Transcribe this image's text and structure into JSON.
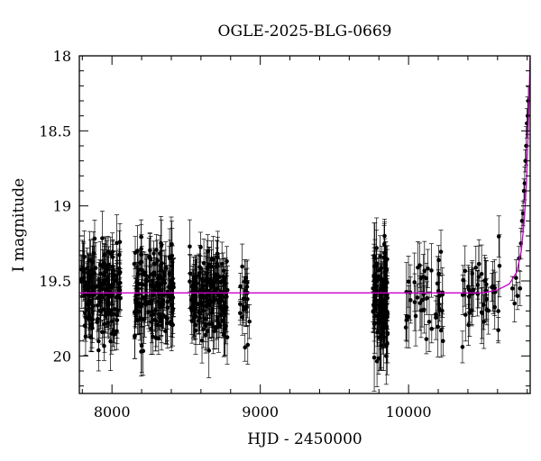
{
  "chart_data": {
    "type": "scatter",
    "title": "OGLE-2025-BLG-0669",
    "xlabel": "HJD - 2450000",
    "ylabel": "I magnitude",
    "xlim": [
      7780,
      10820
    ],
    "ylim": [
      20.25,
      18.0
    ],
    "y_inverted": true,
    "x_ticks": [
      8000,
      9000,
      10000
    ],
    "y_ticks": [
      18,
      18.5,
      19,
      19.5,
      20
    ],
    "y_tick_labels": [
      "18",
      "18.5",
      "19",
      "19.5",
      "20"
    ],
    "x_tick_labels": [
      "8000",
      "9000",
      "10000"
    ],
    "grid": false,
    "point_color": "#000000",
    "model_color": "#cc00cc",
    "baseline_magnitude": 19.58,
    "seasons": [
      {
        "x_range": [
          7790,
          8060
        ],
        "mean_mag": 19.58,
        "scatter": 0.15,
        "error": 0.13,
        "points": 170
      },
      {
        "x_range": [
          8150,
          8420
        ],
        "mean_mag": 19.57,
        "scatter": 0.15,
        "error": 0.13,
        "points": 170
      },
      {
        "x_range": [
          8520,
          8780
        ],
        "mean_mag": 19.59,
        "scatter": 0.15,
        "error": 0.13,
        "points": 170
      },
      {
        "x_range": [
          8860,
          8930
        ],
        "mean_mag": 19.58,
        "scatter": 0.13,
        "error": 0.1,
        "points": 22
      },
      {
        "x_range": [
          9760,
          9860
        ],
        "mean_mag": 19.62,
        "scatter": 0.2,
        "error": 0.15,
        "points": 110
      },
      {
        "x_range": [
          9980,
          10240
        ],
        "mean_mag": 19.62,
        "scatter": 0.15,
        "error": 0.14,
        "points": 45
      },
      {
        "x_range": [
          10360,
          10620
        ],
        "mean_mag": 19.62,
        "scatter": 0.15,
        "error": 0.14,
        "points": 45
      }
    ],
    "event_points": [
      {
        "x": 10700,
        "y": 19.55
      },
      {
        "x": 10715,
        "y": 19.65
      },
      {
        "x": 10725,
        "y": 19.48
      },
      {
        "x": 10735,
        "y": 19.6
      },
      {
        "x": 10745,
        "y": 19.35
      },
      {
        "x": 10752,
        "y": 19.55
      },
      {
        "x": 10758,
        "y": 19.25
      },
      {
        "x": 10765,
        "y": 19.1
      },
      {
        "x": 10772,
        "y": 19.05
      },
      {
        "x": 10778,
        "y": 18.9
      },
      {
        "x": 10783,
        "y": 18.85
      },
      {
        "x": 10788,
        "y": 18.7
      },
      {
        "x": 10793,
        "y": 18.6
      },
      {
        "x": 10798,
        "y": 18.45
      },
      {
        "x": 10803,
        "y": 18.4
      },
      {
        "x": 10808,
        "y": 18.3
      }
    ],
    "model_curve": [
      {
        "x": 7780,
        "y": 19.58
      },
      {
        "x": 10500,
        "y": 19.58
      },
      {
        "x": 10600,
        "y": 19.56
      },
      {
        "x": 10680,
        "y": 19.52
      },
      {
        "x": 10730,
        "y": 19.44
      },
      {
        "x": 10760,
        "y": 19.3
      },
      {
        "x": 10780,
        "y": 19.1
      },
      {
        "x": 10795,
        "y": 18.85
      },
      {
        "x": 10805,
        "y": 18.55
      },
      {
        "x": 10812,
        "y": 18.3
      },
      {
        "x": 10820,
        "y": 18.0
      }
    ]
  }
}
